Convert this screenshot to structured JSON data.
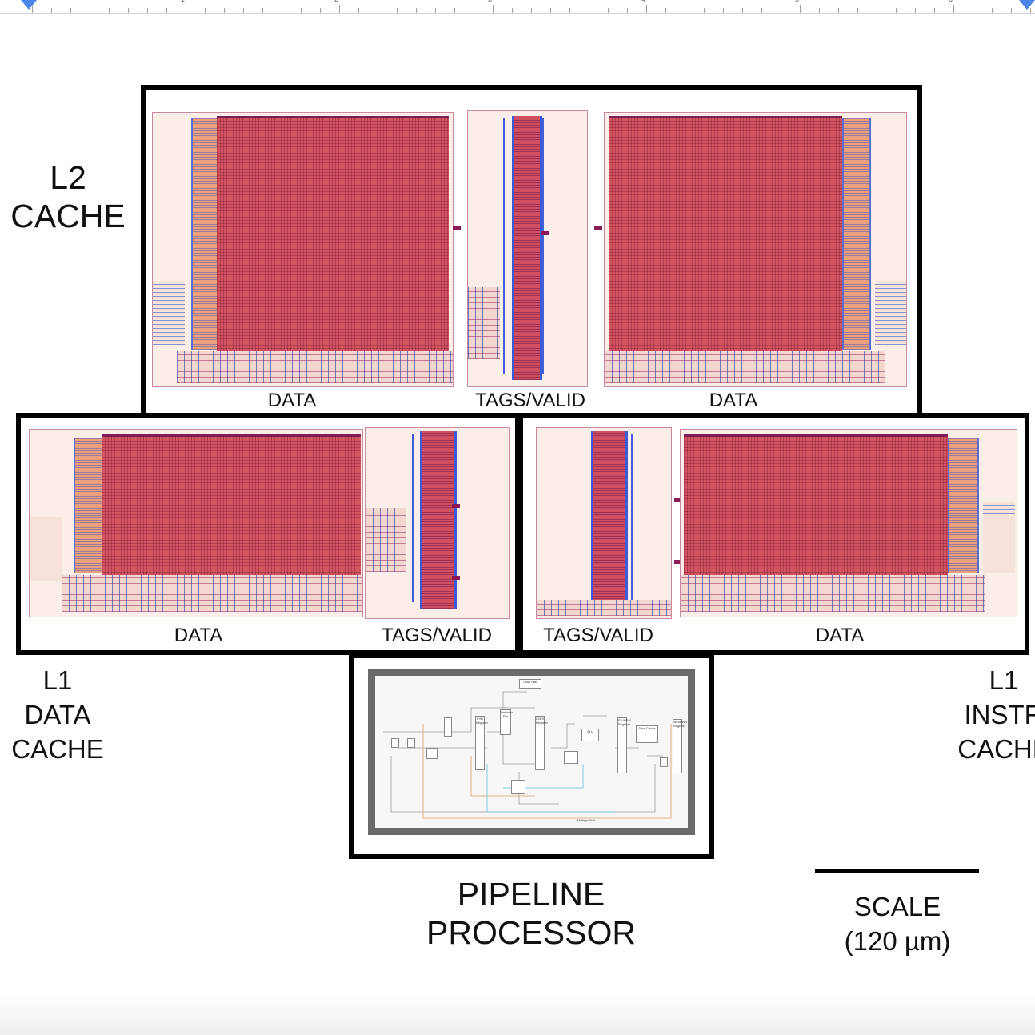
{
  "colors": {
    "box_border": "#000000",
    "sram_array": "#d2545f",
    "layout_background": "#fbeee8",
    "pipeline_frame": "#6b6b6b",
    "ruler_marker": "#4a86e8"
  },
  "ruler": {
    "numbers": [
      "1",
      "2",
      "3",
      "4",
      "5",
      "6"
    ]
  },
  "l2_cache": {
    "title_line1": "L2",
    "title_line2": "CACHE",
    "left_data_label": "DATA",
    "tags_label": "TAGS/VALID",
    "right_data_label": "DATA"
  },
  "l1_data_cache": {
    "title_line1": "L1",
    "title_line2": "DATA",
    "title_line3": "CACHE",
    "data_label": "DATA",
    "tags_label": "TAGS/VALID"
  },
  "l1_instr_cache": {
    "title_line1": "L1",
    "title_line2": "INSTR",
    "title_line3": "CACHE",
    "tags_label": "TAGS/VALID",
    "data_label": "DATA"
  },
  "pipeline": {
    "title_line1": "PIPELINE",
    "title_line2": "PROCESSOR",
    "blocks": [
      "Load Stall",
      "Register File",
      "IF/ID Register",
      "ID/EX Register",
      "ALU",
      "EX/MEM Register",
      "Data Cache",
      "MEM/WB Register",
      "Multiply Stall"
    ]
  },
  "scale": {
    "label": "SCALE",
    "value": "(120 µm)"
  }
}
